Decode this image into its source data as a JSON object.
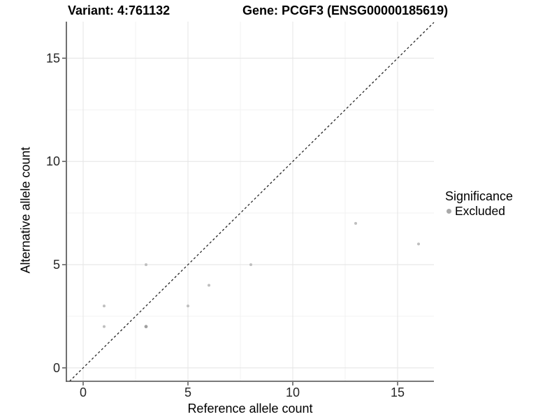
{
  "chart_data": {
    "type": "scatter",
    "title_left": "Variant: 4:761132",
    "title_right": "Gene: PCGF3 (ENSG00000185619)",
    "xlabel": "Reference allele count",
    "ylabel": "Alternative allele count",
    "xlim": [
      -0.8,
      16.733
    ],
    "ylim": [
      -0.65,
      16.77
    ],
    "x_ticks": [
      0,
      5,
      10,
      15
    ],
    "y_ticks": [
      0,
      5,
      10,
      15
    ],
    "x_minor_ticks": [
      2.5,
      7.5,
      12.5
    ],
    "y_minor_ticks": [
      2.5,
      7.5,
      12.5
    ],
    "grid": true,
    "identity_line": {
      "rule": "y=x",
      "linestyle": "dashed",
      "color": "#262626"
    },
    "series": [
      {
        "name": "Excluded",
        "color": "#bebebe",
        "points": [
          [
            1,
            2,
            1
          ],
          [
            1,
            3,
            1
          ],
          [
            3,
            2,
            2
          ],
          [
            3,
            5,
            1
          ],
          [
            5,
            3,
            1
          ],
          [
            6,
            4,
            1
          ],
          [
            8,
            5,
            1
          ],
          [
            13,
            7,
            1
          ],
          [
            16,
            6,
            1
          ]
        ]
      }
    ],
    "legend": {
      "title": "Significance",
      "position": "right",
      "entries": [
        {
          "label": "Excluded",
          "color": "#a9a9a9"
        }
      ]
    },
    "colors": {
      "background": "#ffffff",
      "grid_major": "#e6e6e6",
      "grid_minor": "#f2f2f2",
      "axis_line": "#4d4d4d",
      "tick_label": "#262626",
      "point": "#bebebe",
      "point_overlap": "#9f9f9f",
      "identity_line": "#262626",
      "legend_point": "#a9a9a9"
    }
  }
}
